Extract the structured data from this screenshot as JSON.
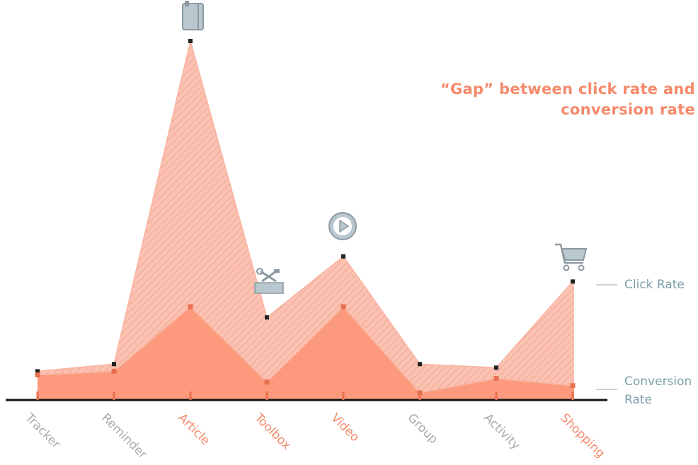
{
  "colors": {
    "gap_fill": "#fbc1b1",
    "gap_hatch": "#e89a85",
    "conversion_fill": "#fd9a7e",
    "highlight": "#f58a6a",
    "muted_label": "#aaaaaa",
    "legend_text": "#7d9fa8",
    "icon": "#b9c7ce",
    "icon_stroke": "#8c99a0"
  },
  "annotation": "“Gap” between click rate and conversion rate",
  "legend": {
    "click": "Click Rate",
    "conversion": "Conversion Rate"
  },
  "chart_data": {
    "type": "area",
    "categories": [
      "Tracker",
      "Reminder",
      "Article",
      "Toolbox",
      "Video",
      "Group",
      "Activity",
      "Shopping"
    ],
    "highlighted": [
      "Article",
      "Toolbox",
      "Video",
      "Shopping"
    ],
    "category_icons": {
      "Article": "notebook-icon",
      "Toolbox": "toolbox-icon",
      "Video": "play-icon",
      "Shopping": "shopping-cart-icon"
    },
    "series": [
      {
        "name": "Click Rate",
        "values": [
          0.8,
          1.0,
          10.0,
          2.3,
          4.0,
          1.0,
          0.9,
          3.3
        ]
      },
      {
        "name": "Conversion Rate",
        "values": [
          0.7,
          0.8,
          2.6,
          0.5,
          2.6,
          0.2,
          0.6,
          0.4
        ]
      }
    ],
    "ylim": [
      0,
      10.5
    ],
    "grid": false
  }
}
